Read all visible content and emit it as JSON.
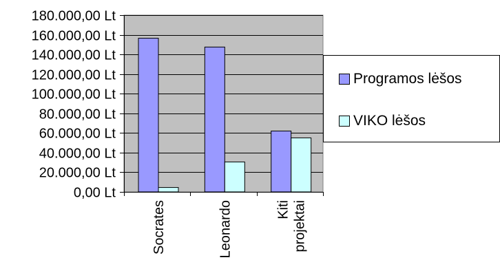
{
  "chart_data": {
    "type": "bar",
    "categories": [
      "Socrates",
      "Leonardo",
      "Kiti projektai"
    ],
    "series": [
      {
        "name": "Programos lėšos",
        "values": [
          156500,
          147500,
          62000
        ],
        "color": "#9999ff"
      },
      {
        "name": "VIKO lėšos",
        "values": [
          4500,
          30500,
          55000
        ],
        "color": "#ccffff"
      }
    ],
    "yticks": [
      "0,00 Lt",
      "20.000,00 Lt",
      "40.000,00 Lt",
      "60.000,00 Lt",
      "80.000,00 Lt",
      "100.000,00 Lt",
      "120.000,00 Lt",
      "140.000,00 Lt",
      "160.000,00 Lt",
      "180.000,00 Lt"
    ],
    "xticks": [
      [
        "Socrates"
      ],
      [
        "Leonardo"
      ],
      [
        "Kiti",
        "projektai"
      ]
    ],
    "ylim": [
      0,
      180000
    ],
    "ystep": 20000,
    "grid": true,
    "plot_background": "#c0c0c0",
    "legend_position": "right"
  }
}
